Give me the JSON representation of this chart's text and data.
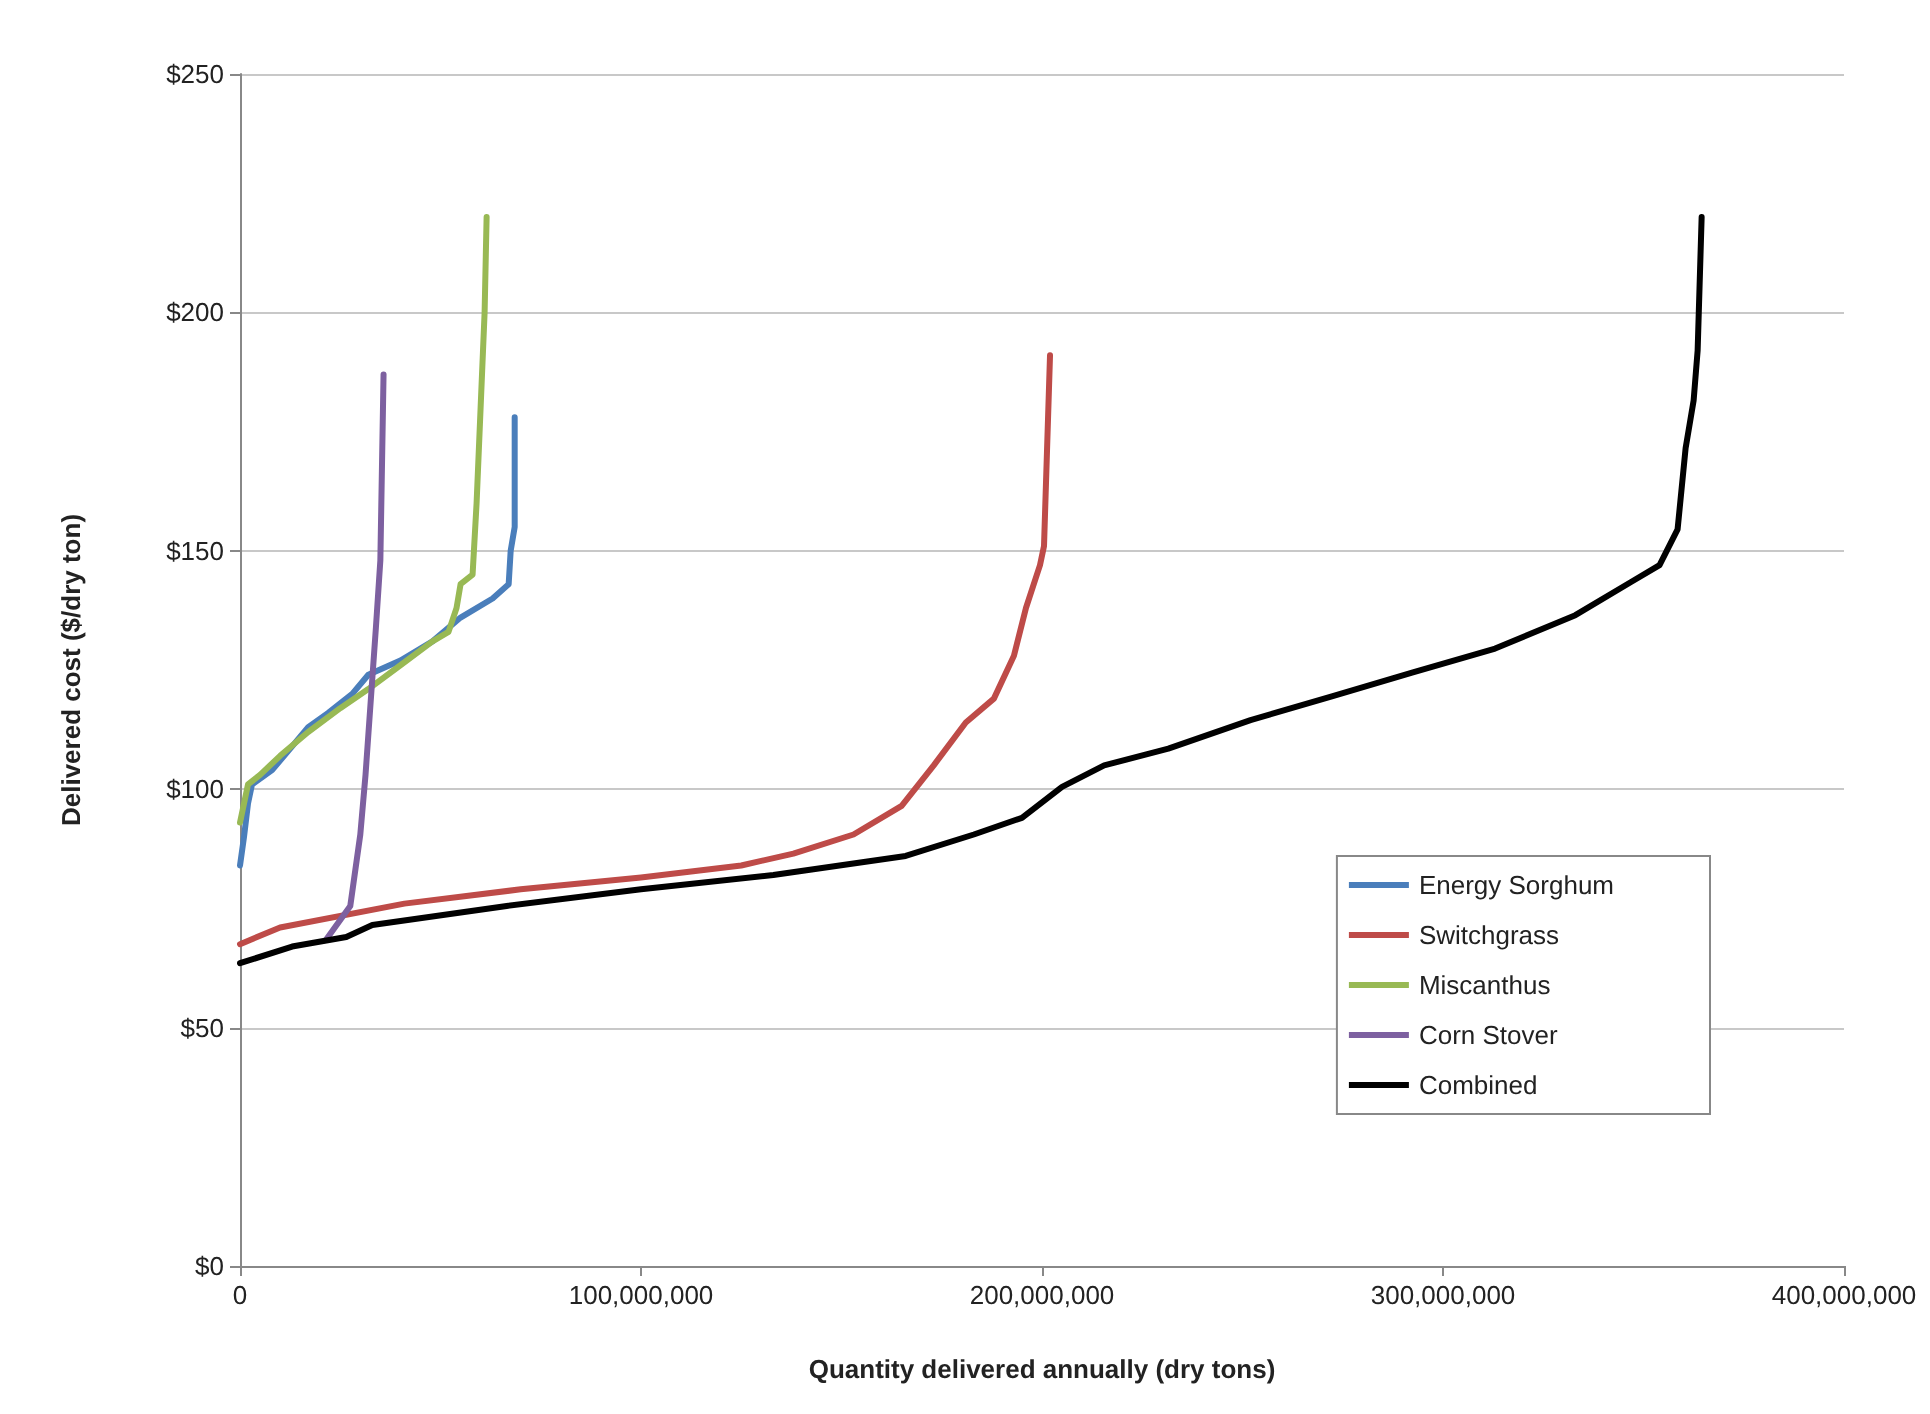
{
  "chart_data": {
    "type": "line",
    "xlabel": "Quantity delivered annually (dry tons)",
    "ylabel": "Delivered cost ($/dry ton)",
    "xlim": [
      0,
      400000000
    ],
    "xticks": [
      {
        "value": 0,
        "label": "0"
      },
      {
        "value": 100000000,
        "label": "100,000,000"
      },
      {
        "value": 200000000,
        "label": "200,000,000"
      },
      {
        "value": 300000000,
        "label": "300,000,000"
      },
      {
        "value": 400000000,
        "label": "400,000,000"
      }
    ],
    "ylim": [
      0,
      250
    ],
    "yticks": [
      {
        "value": 0,
        "label": "$0"
      },
      {
        "value": 50,
        "label": "$50"
      },
      {
        "value": 100,
        "label": "$100"
      },
      {
        "value": 150,
        "label": "$150"
      },
      {
        "value": 200,
        "label": "$200"
      },
      {
        "value": 250,
        "label": "$250"
      }
    ],
    "grid": "y",
    "legend": "bottom right",
    "marker": "none",
    "series": [
      {
        "name": "Energy Sorghum",
        "color": "#4a7ebb",
        "x": [
          0,
          1000000,
          2000000,
          3000000,
          8000000,
          12000000,
          17000000,
          22000000,
          28000000,
          32000000,
          40000000,
          48000000,
          55000000,
          63000000,
          67000000,
          67500000,
          68500000,
          68500000
        ],
        "values": [
          84,
          90,
          97,
          101,
          104,
          108,
          113,
          116,
          120,
          124,
          127,
          131,
          136,
          140,
          143,
          150,
          155,
          178
        ]
      },
      {
        "name": "Switchgrass",
        "color": "#be4b48",
        "x": [
          0,
          10000000,
          41000000,
          70000000,
          100000000,
          125000000,
          138000000,
          153000000,
          165000000,
          173000000,
          181000000,
          188000000,
          193000000,
          196000000,
          199500000,
          200500000,
          202000000
        ],
        "values": [
          67.5,
          71,
          76,
          79,
          81.5,
          84,
          86.5,
          90.5,
          96.5,
          105,
          114,
          119,
          128,
          138,
          147,
          151,
          191
        ]
      },
      {
        "name": "Miscanthus",
        "color": "#98b954",
        "x": [
          0,
          2000000,
          5000000,
          10000000,
          17000000,
          25000000,
          32000000,
          40000000,
          48000000,
          52000000,
          54000000,
          55000000,
          58000000,
          59000000,
          60000000,
          61000000,
          61500000
        ],
        "values": [
          93,
          101,
          103,
          107,
          112,
          117,
          121,
          126,
          131,
          133,
          138,
          143,
          145,
          160,
          180,
          200,
          220
        ]
      },
      {
        "name": "Corn Stover",
        "color": "#7d60a0",
        "x": [
          21500000,
          27500000,
          30000000,
          31300000,
          33900000,
          35000000,
          35800000
        ],
        "values": [
          68.5,
          75.5,
          90.5,
          103,
          134,
          148,
          187
        ]
      },
      {
        "name": "Combined",
        "color": "#000000",
        "x": [
          0,
          13000000,
          26500000,
          33000000,
          66500000,
          100000000,
          133000000,
          166000000,
          183000000,
          195000000,
          205000000,
          215500000,
          231500000,
          252000000,
          272500000,
          292500000,
          313000000,
          333000000,
          347000000,
          354000000,
          358500000,
          360500000,
          362500000,
          363500000,
          364500000
        ],
        "values": [
          63.5,
          67,
          69,
          71.5,
          75.5,
          79,
          82,
          86,
          90.5,
          94,
          100.5,
          105,
          108.5,
          114.5,
          119.5,
          124.5,
          129.5,
          136.5,
          143.5,
          147,
          154.5,
          171.5,
          181.5,
          192,
          220
        ]
      }
    ]
  }
}
